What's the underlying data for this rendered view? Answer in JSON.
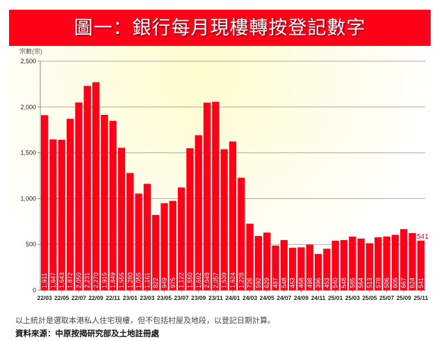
{
  "chart_data": {
    "type": "bar",
    "title": "圖一：銀行每月現樓轉按登記數字",
    "ylabel": "宗數(宗)",
    "xlabel": "",
    "ylim": [
      0,
      2500
    ],
    "yticks": [
      "0",
      "500",
      "1,000",
      "1,500",
      "2,000",
      "2,500"
    ],
    "grid": true,
    "bar_color": "#ff0019",
    "categories": [
      "22/03",
      "22/04",
      "22/05",
      "22/06",
      "22/07",
      "22/08",
      "22/09",
      "22/10",
      "22/11",
      "22/12",
      "23/01",
      "23/02",
      "23/03",
      "23/04",
      "23/05",
      "23/06",
      "23/07",
      "23/08",
      "23/09",
      "23/10",
      "23/11",
      "23/12",
      "24/01",
      "24/02",
      "24/03",
      "24/04",
      "24/05",
      "24/06",
      "24/07",
      "24/08",
      "24/09",
      "24/10",
      "24/11",
      "24/12",
      "25/01",
      "25/02",
      "25/03",
      "25/04",
      "25/05",
      "25/06",
      "25/07",
      "25/08",
      "25/09",
      "25/10",
      "25/11"
    ],
    "xtick_labels": [
      "22/03",
      "22/05",
      "22/07",
      "22/09",
      "22/11",
      "23/01",
      "23/03",
      "23/05",
      "23/07",
      "23/09",
      "23/11",
      "24/01",
      "24/03",
      "24/05",
      "24/07",
      "24/09",
      "24/11",
      "25/01",
      "25/03",
      "25/05",
      "25/07",
      "25/09",
      "25/11"
    ],
    "values": [
      1911,
      1647,
      1643,
      1872,
      2050,
      2231,
      2270,
      1915,
      1849,
      1555,
      1280,
      1055,
      1161,
      822,
      949,
      975,
      1122,
      1550,
      1692,
      2048,
      2057,
      1539,
      1624,
      1228,
      726,
      592,
      629,
      487,
      548,
      463,
      468,
      498,
      396,
      453,
      540,
      548,
      585,
      564,
      513,
      578,
      586,
      605,
      667,
      624,
      541
    ],
    "value_labels": [
      "1,911",
      "1,647",
      "1,643",
      "1,872",
      "2,050",
      "2,231",
      "2,270",
      "1,915",
      "1,849",
      "1,555",
      "1,280",
      "1,055",
      "1,161",
      "822",
      "949",
      "975",
      "1,122",
      "1,550",
      "1,692",
      "2,048",
      "2,057",
      "1,539",
      "1,624",
      "1,228",
      "726",
      "592",
      "629",
      "487",
      "548",
      "463",
      "468",
      "498",
      "396",
      "453",
      "540",
      "548",
      "585",
      "564",
      "513",
      "578",
      "586",
      "605",
      "667",
      "624",
      "541"
    ],
    "last_value_callout": "541"
  },
  "footer": {
    "note": "以上統計是選取本港私人住宅現樓，但不包括村屋及地段，以登記日期計算。",
    "source": "資料來源：中原按揭研究部及土地註冊處"
  }
}
